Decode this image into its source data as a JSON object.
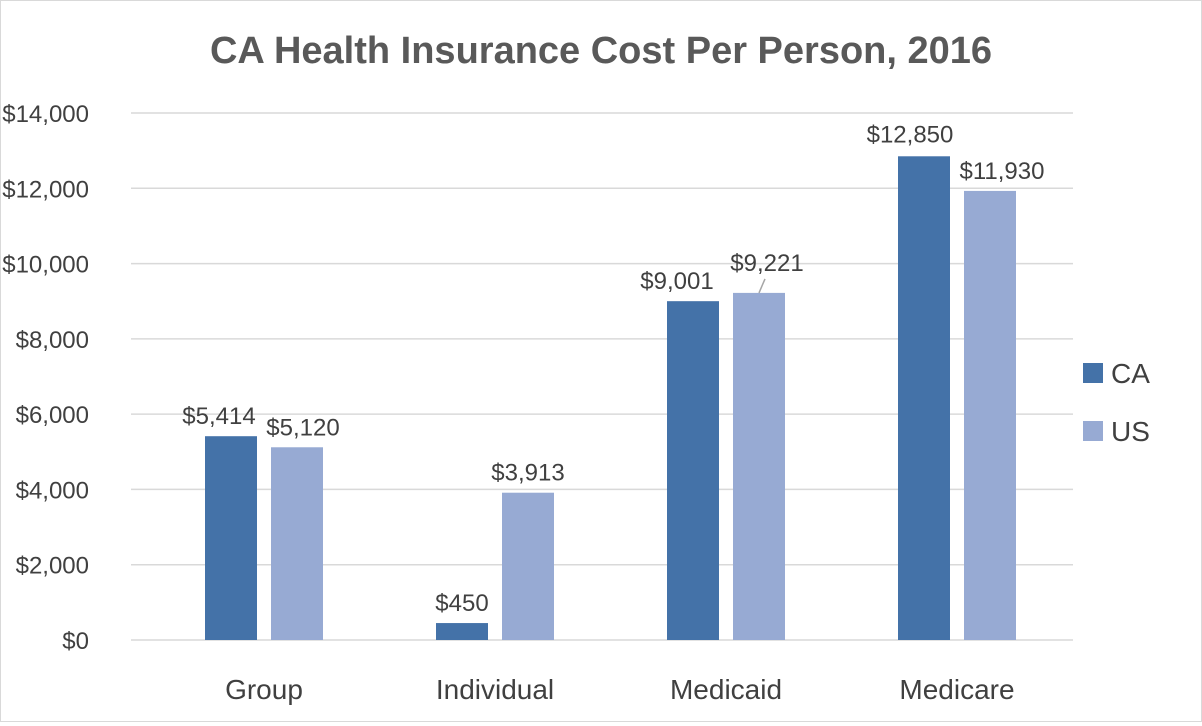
{
  "chart_data": {
    "type": "bar",
    "title": "CA Health Insurance Cost Per Person, 2016",
    "categories": [
      "Group",
      "Individual",
      "Medicaid",
      "Medicare"
    ],
    "series": [
      {
        "name": "CA",
        "values": [
          5414,
          450,
          9001,
          12850
        ],
        "labels": [
          "$5,414",
          "$450",
          "$9,001",
          "$12,850"
        ],
        "color": "#4472a8"
      },
      {
        "name": "US",
        "values": [
          5120,
          3913,
          9221,
          11930
        ],
        "labels": [
          "$5,120",
          "$3,913",
          "$9,221",
          "$11,930"
        ],
        "color": "#97aad3"
      }
    ],
    "ylim": [
      0,
      14000
    ],
    "yticks": [
      0,
      2000,
      4000,
      6000,
      8000,
      10000,
      12000,
      14000
    ],
    "ytick_labels": [
      "$0",
      "$2,000",
      "$4,000",
      "$6,000",
      "$8,000",
      "$10,000",
      "$12,000",
      "$14,000"
    ],
    "xlabel": "",
    "ylabel": "",
    "grid": true,
    "legend": "right"
  }
}
